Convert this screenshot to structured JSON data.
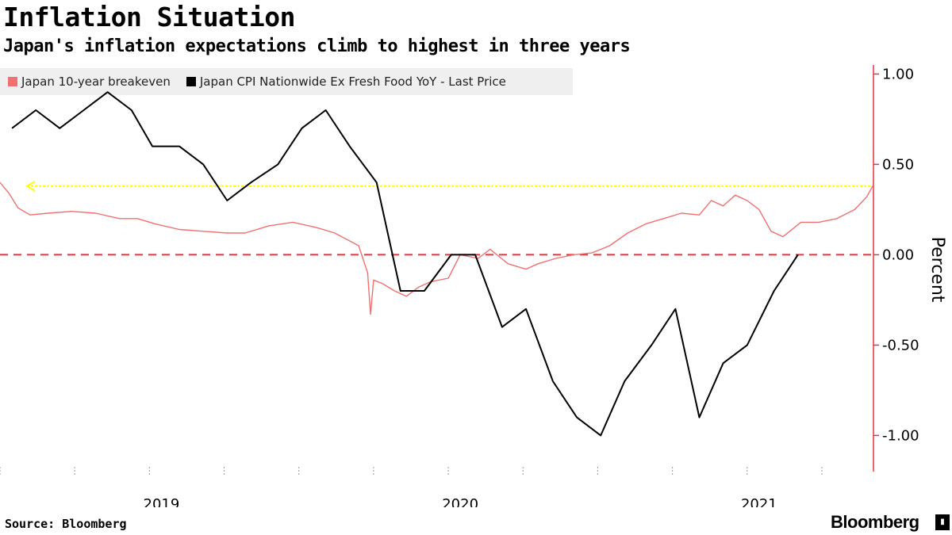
{
  "header": {
    "title": "Inflation Situation",
    "subtitle": "Japan's inflation expectations climb to highest in three years"
  },
  "footer": {
    "source": "Source: Bloomberg",
    "brand": "Bloomberg"
  },
  "colors": {
    "breakeven": "#f07070",
    "cpi": "#000000",
    "zero_line": "#e8333f",
    "highlight": "#ffff00",
    "axis": "#e8333f"
  },
  "chart_data": {
    "type": "line",
    "title": "Inflation Situation",
    "subtitle": "Japan's inflation expectations climb to highest in three years",
    "ylabel": "Percent",
    "ylim": [
      -1.2,
      1.05
    ],
    "y_ticks": [
      "1.00",
      "0.50",
      "0.00",
      "-0.50",
      "-1.00"
    ],
    "y_tick_values": [
      1.0,
      0.5,
      0.0,
      -0.5,
      -1.0
    ],
    "x_range": [
      2018.5,
      2021.42
    ],
    "x_tick_labels": [
      "2019",
      "2020",
      "2021"
    ],
    "x_tick_label_positions": [
      2019.04,
      2020.04,
      2021.04
    ],
    "reference_lines": [
      {
        "name": "zero",
        "y": 0.0,
        "style": "dashed"
      },
      {
        "name": "current breakeven level",
        "y": 0.38,
        "style": "dotted-arrow"
      }
    ],
    "series": [
      {
        "name": "Japan 10-year breakeven",
        "x": [
          2018.5,
          2018.53,
          2018.56,
          2018.6,
          2018.66,
          2018.74,
          2018.82,
          2018.9,
          2018.96,
          2019.02,
          2019.1,
          2019.18,
          2019.26,
          2019.32,
          2019.4,
          2019.48,
          2019.56,
          2019.62,
          2019.7,
          2019.73,
          2019.74,
          2019.75,
          2019.78,
          2019.82,
          2019.86,
          2019.9,
          2019.94,
          2020.0,
          2020.04,
          2020.1,
          2020.14,
          2020.2,
          2020.26,
          2020.3,
          2020.36,
          2020.42,
          2020.48,
          2020.54,
          2020.6,
          2020.66,
          2020.72,
          2020.78,
          2020.84,
          2020.88,
          2020.92,
          2020.96,
          2021.0,
          2021.04,
          2021.08,
          2021.12,
          2021.18,
          2021.24,
          2021.3,
          2021.36,
          2021.4,
          2021.42
        ],
        "values": [
          0.4,
          0.34,
          0.26,
          0.22,
          0.23,
          0.24,
          0.23,
          0.2,
          0.2,
          0.17,
          0.14,
          0.13,
          0.12,
          0.12,
          0.16,
          0.18,
          0.15,
          0.12,
          0.05,
          -0.1,
          -0.33,
          -0.14,
          -0.16,
          -0.2,
          -0.23,
          -0.18,
          -0.15,
          -0.13,
          0.0,
          -0.02,
          0.03,
          -0.05,
          -0.08,
          -0.05,
          -0.02,
          0.0,
          0.01,
          0.05,
          0.12,
          0.17,
          0.2,
          0.23,
          0.22,
          0.3,
          0.27,
          0.33,
          0.3,
          0.25,
          0.13,
          0.1,
          0.18,
          0.18,
          0.2,
          0.25,
          0.32,
          0.38
        ]
      },
      {
        "name": "Japan CPI Nationwide Ex Fresh Food YoY - Last Price",
        "x": [
          2018.54,
          2018.62,
          2018.7,
          2018.78,
          2018.86,
          2018.94,
          2019.01,
          2019.1,
          2019.18,
          2019.26,
          2019.34,
          2019.43,
          2019.51,
          2019.59,
          2019.67,
          2019.76,
          2019.84,
          2019.92,
          2020.01,
          2020.09,
          2020.18,
          2020.26,
          2020.35,
          2020.43,
          2020.51,
          2020.59,
          2020.68,
          2020.76,
          2020.84,
          2020.92,
          2021.0,
          2021.09,
          2021.17
        ],
        "values": [
          0.7,
          0.8,
          0.7,
          0.8,
          0.9,
          0.8,
          0.6,
          0.6,
          0.5,
          0.3,
          0.4,
          0.5,
          0.7,
          0.8,
          0.6,
          0.4,
          -0.2,
          -0.2,
          0.0,
          0.0,
          -0.4,
          -0.3,
          -0.7,
          -0.9,
          -1.0,
          -0.7,
          -0.5,
          -0.3,
          -0.9,
          -0.6,
          -0.5,
          -0.2,
          0.0
        ]
      }
    ],
    "legend": [
      "Japan 10-year breakeven",
      "Japan CPI Nationwide Ex Fresh Food YoY - Last Price"
    ]
  }
}
